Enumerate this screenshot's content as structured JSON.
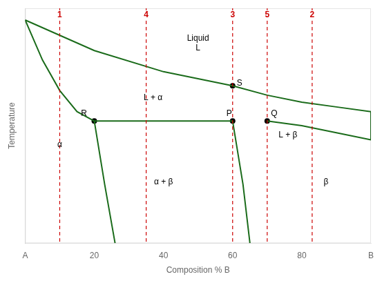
{
  "chart_data": {
    "type": "line",
    "xlabel": "Composition % B",
    "ylabel": "Temperature",
    "xlim": [
      0,
      100
    ],
    "ylim": [
      0,
      100
    ],
    "xticks": [
      {
        "value": 0,
        "label": "A"
      },
      20,
      40,
      60,
      80,
      {
        "value": 100,
        "label": "B"
      }
    ],
    "yticks": [],
    "tick_labels": "x",
    "grid": false,
    "series": [
      {
        "x": [
          0,
          20,
          40,
          60
        ],
        "values": [
          95,
          82,
          73,
          67
        ],
        "color": "#1a6b1a"
      },
      {
        "x": [
          60,
          70,
          80,
          90,
          100
        ],
        "values": [
          67,
          63,
          60,
          58,
          56
        ],
        "color": "#1a6b1a"
      },
      {
        "x": [
          0,
          5,
          10,
          15,
          20
        ],
        "values": [
          95,
          78,
          65,
          56,
          52
        ],
        "color": "#1a6b1a"
      },
      {
        "x": [
          20,
          23,
          26
        ],
        "values": [
          52,
          25,
          0
        ],
        "color": "#1a6b1a"
      },
      {
        "x": [
          20,
          60
        ],
        "values": [
          52,
          52
        ],
        "color": "#1a6b1a"
      },
      {
        "x": [
          60,
          63,
          65
        ],
        "values": [
          52,
          25,
          0
        ],
        "color": "#1a6b1a"
      },
      {
        "x": [
          70,
          80,
          90,
          100
        ],
        "values": [
          52,
          50,
          47,
          44
        ],
        "color": "#1a6b1a"
      },
      {
        "x": [
          100,
          100
        ],
        "values": [
          56,
          44
        ],
        "color": "#1a6b1a"
      },
      {
        "type": "scatter",
        "marker": "circle",
        "x": [
          20,
          60,
          70,
          60
        ],
        "values": [
          52,
          52,
          52,
          67
        ],
        "color": "#000000"
      }
    ],
    "vlines": [
      {
        "x": 10,
        "label": "1",
        "color": "#cc0000",
        "line_style": "dashed"
      },
      {
        "x": 35,
        "label": "4",
        "color": "#cc0000",
        "line_style": "dashed"
      },
      {
        "x": 60,
        "label": "3",
        "color": "#cc0000",
        "line_style": "dashed"
      },
      {
        "x": 70,
        "label": "5",
        "color": "#cc0000",
        "line_style": "dashed"
      },
      {
        "x": 83,
        "label": "2",
        "color": "#cc0000",
        "line_style": "dashed"
      }
    ],
    "annotations": [
      {
        "text": "R",
        "x": 17,
        "y": 55
      },
      {
        "text": "P",
        "x": 59,
        "y": 55
      },
      {
        "text": "Q",
        "x": 72,
        "y": 55
      },
      {
        "text": "S",
        "x": 62,
        "y": 68
      },
      {
        "text": "Liquid\nL",
        "x": 50,
        "y": 85
      },
      {
        "text": "L + α",
        "x": 37,
        "y": 62
      },
      {
        "text": "L + β",
        "x": 76,
        "y": 46
      },
      {
        "text": "α",
        "x": 10,
        "y": 42
      },
      {
        "text": "α + β",
        "x": 40,
        "y": 26
      },
      {
        "text": "β",
        "x": 87,
        "y": 26
      }
    ]
  }
}
